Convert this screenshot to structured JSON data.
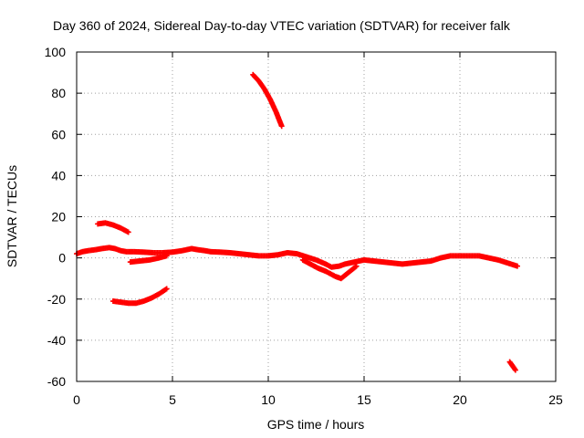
{
  "chart_data": {
    "type": "scatter",
    "title": "Day 360 of 2024, Sidereal Day-to-day VTEC variation (SDTVAR) for receiver falk",
    "xlabel": "GPS time / hours",
    "ylabel": "SDTVAR / TECUs",
    "xlim": [
      0,
      25
    ],
    "ylim": [
      -60,
      100
    ],
    "xticks": [
      0,
      5,
      10,
      15,
      20,
      25
    ],
    "yticks": [
      -60,
      -40,
      -20,
      0,
      20,
      40,
      60,
      80,
      100
    ],
    "grid": true,
    "marker": "plus",
    "colors": {
      "series": "#ff0000",
      "grid": "#a0a0a0",
      "axis": "#000000"
    },
    "series": [
      {
        "name": "main-band",
        "points": [
          [
            0.0,
            2
          ],
          [
            0.3,
            3
          ],
          [
            0.6,
            3.5
          ],
          [
            1.0,
            4
          ],
          [
            1.3,
            4.5
          ],
          [
            1.7,
            5
          ],
          [
            2.0,
            4.5
          ],
          [
            2.3,
            3.5
          ],
          [
            2.6,
            3
          ],
          [
            3.0,
            3
          ],
          [
            3.5,
            2.8
          ],
          [
            4.0,
            2.5
          ],
          [
            4.5,
            2.5
          ],
          [
            5.0,
            2.8
          ],
          [
            5.5,
            3.5
          ],
          [
            6.0,
            4.5
          ],
          [
            6.3,
            4
          ],
          [
            6.7,
            3.5
          ],
          [
            7.0,
            3
          ],
          [
            7.5,
            2.8
          ],
          [
            8.0,
            2.5
          ],
          [
            8.5,
            2
          ],
          [
            9.0,
            1.5
          ],
          [
            9.5,
            1
          ],
          [
            10.0,
            1
          ],
          [
            10.5,
            1.5
          ],
          [
            11.0,
            2.5
          ],
          [
            11.5,
            2
          ],
          [
            12.0,
            0.5
          ],
          [
            12.5,
            -1
          ],
          [
            13.0,
            -3
          ],
          [
            13.3,
            -4.5
          ],
          [
            13.7,
            -4
          ],
          [
            14.0,
            -3
          ],
          [
            14.5,
            -2
          ],
          [
            15.0,
            -1
          ],
          [
            15.5,
            -1.5
          ],
          [
            16.0,
            -2
          ],
          [
            16.5,
            -2.5
          ],
          [
            17.0,
            -3
          ],
          [
            17.5,
            -2.5
          ],
          [
            18.0,
            -2
          ],
          [
            18.5,
            -1.5
          ],
          [
            19.0,
            0
          ],
          [
            19.5,
            1
          ],
          [
            20.0,
            1
          ],
          [
            20.5,
            1
          ],
          [
            21.0,
            1
          ],
          [
            21.5,
            0
          ],
          [
            22.0,
            -1
          ],
          [
            22.5,
            -2.5
          ],
          [
            23.0,
            -4
          ]
        ]
      },
      {
        "name": "spread-a",
        "points": [
          [
            2.8,
            -2
          ],
          [
            3.3,
            -1.5
          ],
          [
            3.8,
            -1
          ],
          [
            4.3,
            0
          ],
          [
            4.7,
            1
          ]
        ]
      },
      {
        "name": "spread-b",
        "points": [
          [
            11.8,
            -1
          ],
          [
            12.2,
            -3
          ],
          [
            12.6,
            -5
          ],
          [
            13.0,
            -6.5
          ],
          [
            13.5,
            -9
          ],
          [
            13.8,
            -10
          ],
          [
            14.2,
            -7
          ],
          [
            14.6,
            -4
          ]
        ]
      },
      {
        "name": "upper-arc",
        "points": [
          [
            1.1,
            16.5
          ],
          [
            1.5,
            17
          ],
          [
            1.9,
            16
          ],
          [
            2.3,
            14.5
          ],
          [
            2.7,
            12.5
          ]
        ]
      },
      {
        "name": "lower-arc",
        "points": [
          [
            1.9,
            -21
          ],
          [
            2.3,
            -21.5
          ],
          [
            2.7,
            -22
          ],
          [
            3.1,
            -22
          ],
          [
            3.5,
            -21
          ],
          [
            3.9,
            -19.5
          ],
          [
            4.3,
            -17.5
          ],
          [
            4.7,
            -15
          ]
        ]
      },
      {
        "name": "high-pass",
        "points": [
          [
            9.2,
            89
          ],
          [
            9.5,
            86
          ],
          [
            9.8,
            82
          ],
          [
            10.1,
            77
          ],
          [
            10.4,
            71
          ],
          [
            10.7,
            64
          ]
        ]
      },
      {
        "name": "low-pass",
        "points": [
          [
            22.6,
            -50.5
          ],
          [
            22.75,
            -52.5
          ],
          [
            22.9,
            -54.5
          ]
        ]
      }
    ]
  }
}
